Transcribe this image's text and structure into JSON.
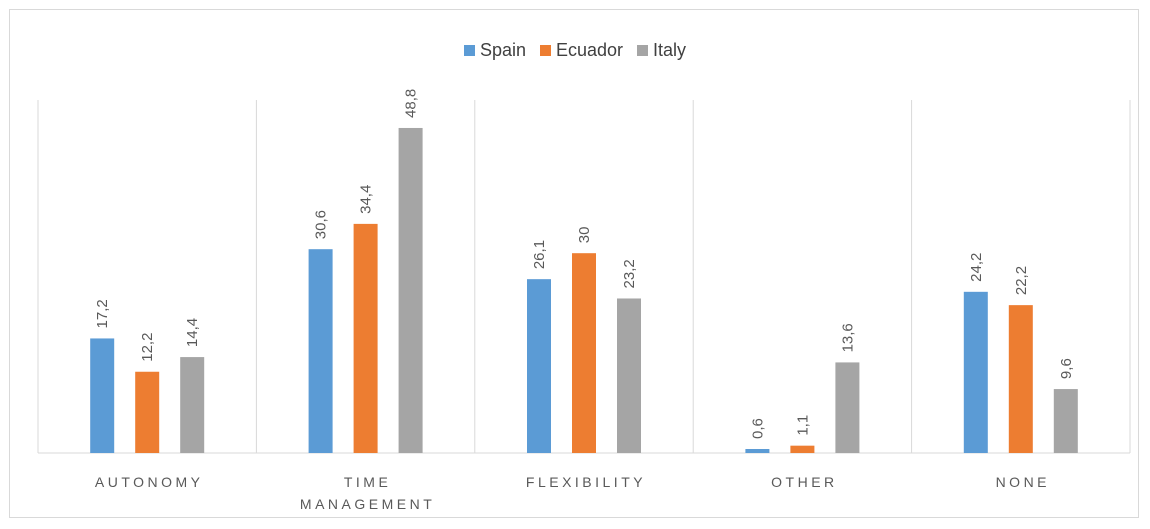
{
  "chart_data": {
    "type": "bar",
    "categories": [
      [
        "AUTONOMY"
      ],
      [
        "TIME",
        "MANAGEMENT"
      ],
      [
        "FLEXIBILITY"
      ],
      [
        "OTHER"
      ],
      [
        "NONE"
      ]
    ],
    "series": [
      {
        "name": "Spain",
        "color": "#5b9bd5",
        "values": [
          17.2,
          30.6,
          26.1,
          0.6,
          24.2
        ],
        "labels": [
          "17,2",
          "30,6",
          "26,1",
          "0,6",
          "24,2"
        ]
      },
      {
        "name": "Ecuador",
        "color": "#ed7d31",
        "values": [
          12.2,
          34.4,
          30,
          1.1,
          22.2
        ],
        "labels": [
          "12,2",
          "34,4",
          "30",
          "1,1",
          "22,2"
        ]
      },
      {
        "name": "Italy",
        "color": "#a5a5a5",
        "values": [
          14.4,
          48.8,
          23.2,
          13.6,
          9.6
        ],
        "labels": [
          "14,4",
          "48,8",
          "23,2",
          "13,6",
          "9,6"
        ]
      }
    ],
    "legend_position": "top",
    "grid": "vertical category dividers",
    "ylim": [
      0,
      53
    ]
  }
}
